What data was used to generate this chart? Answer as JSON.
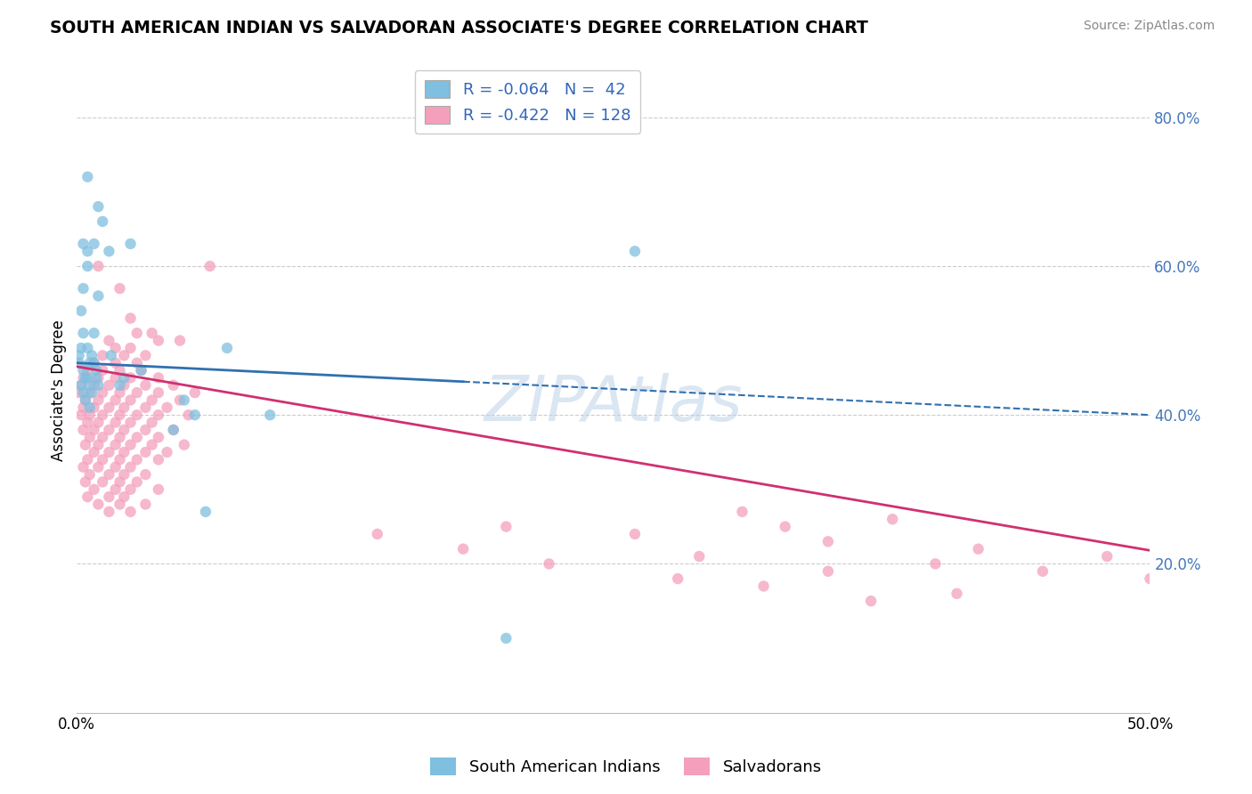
{
  "title": "SOUTH AMERICAN INDIAN VS SALVADORAN ASSOCIATE'S DEGREE CORRELATION CHART",
  "source": "Source: ZipAtlas.com",
  "ylabel": "Associate's Degree",
  "x_min": 0.0,
  "x_max": 0.5,
  "y_min": 0.0,
  "y_max": 0.865,
  "y_ticks": [
    0.2,
    0.4,
    0.6,
    0.8
  ],
  "y_tick_labels": [
    "20.0%",
    "40.0%",
    "60.0%",
    "80.0%"
  ],
  "blue_color": "#7fbfdf",
  "pink_color": "#f4a0bc",
  "blue_line_color": "#3070b0",
  "pink_line_color": "#d03070",
  "blue_line_solid_end": 0.18,
  "blue_line_y_start": 0.47,
  "blue_line_y_end": 0.4,
  "pink_line_y_start": 0.465,
  "pink_line_y_end": 0.218,
  "blue_scatter": [
    [
      0.005,
      0.72
    ],
    [
      0.01,
      0.68
    ],
    [
      0.012,
      0.66
    ],
    [
      0.003,
      0.63
    ],
    [
      0.008,
      0.63
    ],
    [
      0.025,
      0.63
    ],
    [
      0.005,
      0.62
    ],
    [
      0.015,
      0.62
    ],
    [
      0.005,
      0.6
    ],
    [
      0.003,
      0.57
    ],
    [
      0.01,
      0.56
    ],
    [
      0.002,
      0.54
    ],
    [
      0.003,
      0.51
    ],
    [
      0.008,
      0.51
    ],
    [
      0.002,
      0.49
    ],
    [
      0.005,
      0.49
    ],
    [
      0.07,
      0.49
    ],
    [
      0.001,
      0.48
    ],
    [
      0.007,
      0.48
    ],
    [
      0.016,
      0.48
    ],
    [
      0.001,
      0.47
    ],
    [
      0.006,
      0.47
    ],
    [
      0.008,
      0.47
    ],
    [
      0.003,
      0.46
    ],
    [
      0.009,
      0.46
    ],
    [
      0.03,
      0.46
    ],
    [
      0.004,
      0.45
    ],
    [
      0.005,
      0.45
    ],
    [
      0.009,
      0.45
    ],
    [
      0.022,
      0.45
    ],
    [
      0.002,
      0.44
    ],
    [
      0.006,
      0.44
    ],
    [
      0.01,
      0.44
    ],
    [
      0.02,
      0.44
    ],
    [
      0.003,
      0.43
    ],
    [
      0.007,
      0.43
    ],
    [
      0.004,
      0.42
    ],
    [
      0.05,
      0.42
    ],
    [
      0.006,
      0.41
    ],
    [
      0.055,
      0.4
    ],
    [
      0.045,
      0.38
    ],
    [
      0.06,
      0.27
    ],
    [
      0.09,
      0.4
    ],
    [
      0.2,
      0.1
    ],
    [
      0.26,
      0.62
    ]
  ],
  "pink_scatter": [
    [
      0.01,
      0.6
    ],
    [
      0.062,
      0.6
    ],
    [
      0.02,
      0.57
    ],
    [
      0.025,
      0.53
    ],
    [
      0.028,
      0.51
    ],
    [
      0.035,
      0.51
    ],
    [
      0.015,
      0.5
    ],
    [
      0.038,
      0.5
    ],
    [
      0.048,
      0.5
    ],
    [
      0.018,
      0.49
    ],
    [
      0.025,
      0.49
    ],
    [
      0.012,
      0.48
    ],
    [
      0.022,
      0.48
    ],
    [
      0.032,
      0.48
    ],
    [
      0.008,
      0.47
    ],
    [
      0.018,
      0.47
    ],
    [
      0.028,
      0.47
    ],
    [
      0.005,
      0.46
    ],
    [
      0.012,
      0.46
    ],
    [
      0.02,
      0.46
    ],
    [
      0.03,
      0.46
    ],
    [
      0.003,
      0.45
    ],
    [
      0.01,
      0.45
    ],
    [
      0.018,
      0.45
    ],
    [
      0.025,
      0.45
    ],
    [
      0.038,
      0.45
    ],
    [
      0.002,
      0.44
    ],
    [
      0.008,
      0.44
    ],
    [
      0.015,
      0.44
    ],
    [
      0.022,
      0.44
    ],
    [
      0.032,
      0.44
    ],
    [
      0.045,
      0.44
    ],
    [
      0.001,
      0.43
    ],
    [
      0.006,
      0.43
    ],
    [
      0.012,
      0.43
    ],
    [
      0.02,
      0.43
    ],
    [
      0.028,
      0.43
    ],
    [
      0.038,
      0.43
    ],
    [
      0.055,
      0.43
    ],
    [
      0.004,
      0.42
    ],
    [
      0.01,
      0.42
    ],
    [
      0.018,
      0.42
    ],
    [
      0.025,
      0.42
    ],
    [
      0.035,
      0.42
    ],
    [
      0.048,
      0.42
    ],
    [
      0.003,
      0.41
    ],
    [
      0.008,
      0.41
    ],
    [
      0.015,
      0.41
    ],
    [
      0.022,
      0.41
    ],
    [
      0.032,
      0.41
    ],
    [
      0.042,
      0.41
    ],
    [
      0.002,
      0.4
    ],
    [
      0.006,
      0.4
    ],
    [
      0.012,
      0.4
    ],
    [
      0.02,
      0.4
    ],
    [
      0.028,
      0.4
    ],
    [
      0.038,
      0.4
    ],
    [
      0.052,
      0.4
    ],
    [
      0.005,
      0.39
    ],
    [
      0.01,
      0.39
    ],
    [
      0.018,
      0.39
    ],
    [
      0.025,
      0.39
    ],
    [
      0.035,
      0.39
    ],
    [
      0.003,
      0.38
    ],
    [
      0.008,
      0.38
    ],
    [
      0.015,
      0.38
    ],
    [
      0.022,
      0.38
    ],
    [
      0.032,
      0.38
    ],
    [
      0.045,
      0.38
    ],
    [
      0.006,
      0.37
    ],
    [
      0.012,
      0.37
    ],
    [
      0.02,
      0.37
    ],
    [
      0.028,
      0.37
    ],
    [
      0.038,
      0.37
    ],
    [
      0.004,
      0.36
    ],
    [
      0.01,
      0.36
    ],
    [
      0.018,
      0.36
    ],
    [
      0.025,
      0.36
    ],
    [
      0.035,
      0.36
    ],
    [
      0.05,
      0.36
    ],
    [
      0.008,
      0.35
    ],
    [
      0.015,
      0.35
    ],
    [
      0.022,
      0.35
    ],
    [
      0.032,
      0.35
    ],
    [
      0.042,
      0.35
    ],
    [
      0.005,
      0.34
    ],
    [
      0.012,
      0.34
    ],
    [
      0.02,
      0.34
    ],
    [
      0.028,
      0.34
    ],
    [
      0.038,
      0.34
    ],
    [
      0.003,
      0.33
    ],
    [
      0.01,
      0.33
    ],
    [
      0.018,
      0.33
    ],
    [
      0.025,
      0.33
    ],
    [
      0.006,
      0.32
    ],
    [
      0.015,
      0.32
    ],
    [
      0.022,
      0.32
    ],
    [
      0.032,
      0.32
    ],
    [
      0.004,
      0.31
    ],
    [
      0.012,
      0.31
    ],
    [
      0.02,
      0.31
    ],
    [
      0.028,
      0.31
    ],
    [
      0.008,
      0.3
    ],
    [
      0.018,
      0.3
    ],
    [
      0.025,
      0.3
    ],
    [
      0.038,
      0.3
    ],
    [
      0.005,
      0.29
    ],
    [
      0.015,
      0.29
    ],
    [
      0.022,
      0.29
    ],
    [
      0.01,
      0.28
    ],
    [
      0.02,
      0.28
    ],
    [
      0.032,
      0.28
    ],
    [
      0.015,
      0.27
    ],
    [
      0.025,
      0.27
    ],
    [
      0.31,
      0.27
    ],
    [
      0.38,
      0.26
    ],
    [
      0.2,
      0.25
    ],
    [
      0.33,
      0.25
    ],
    [
      0.14,
      0.24
    ],
    [
      0.26,
      0.24
    ],
    [
      0.35,
      0.23
    ],
    [
      0.18,
      0.22
    ],
    [
      0.42,
      0.22
    ],
    [
      0.29,
      0.21
    ],
    [
      0.48,
      0.21
    ],
    [
      0.22,
      0.2
    ],
    [
      0.4,
      0.2
    ],
    [
      0.35,
      0.19
    ],
    [
      0.45,
      0.19
    ],
    [
      0.28,
      0.18
    ],
    [
      0.5,
      0.18
    ],
    [
      0.32,
      0.17
    ],
    [
      0.41,
      0.16
    ],
    [
      0.37,
      0.15
    ]
  ]
}
